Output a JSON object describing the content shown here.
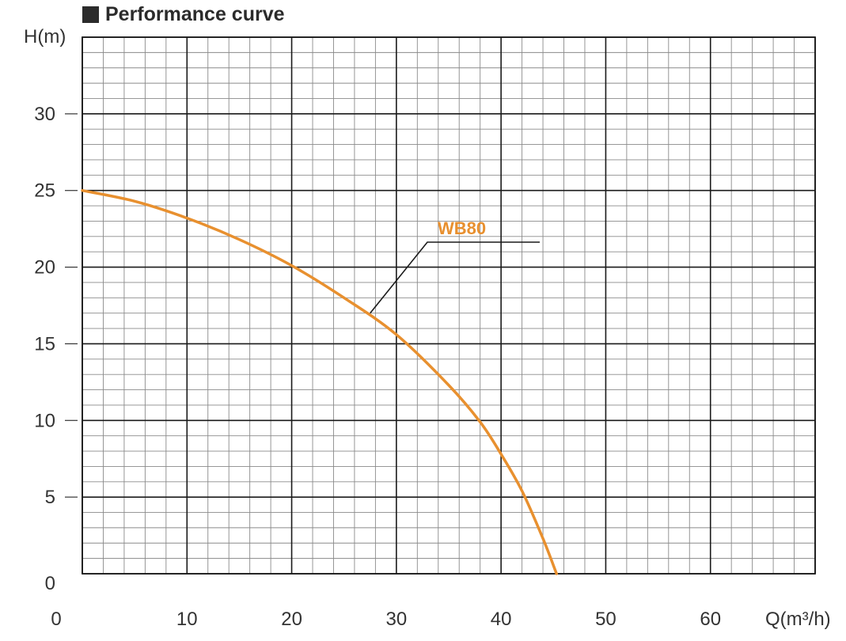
{
  "title": "Performance curve",
  "chart_data": {
    "type": "line",
    "title": "Performance curve",
    "xlabel": "Q(m³/h)",
    "ylabel": "H(m)",
    "xlim": [
      0,
      70
    ],
    "ylim": [
      0,
      35
    ],
    "xticks": [
      "0",
      "10",
      "20",
      "30",
      "40",
      "50",
      "60"
    ],
    "yticks": [
      "0",
      "5",
      "10",
      "15",
      "20",
      "25",
      "30"
    ],
    "grid": true,
    "series": [
      {
        "name": "WB80",
        "color": "#E8902F",
        "x": [
          0,
          5,
          10,
          15,
          20,
          25,
          30,
          35,
          38,
          40,
          42,
          44,
          45.3
        ],
        "y": [
          25,
          24.3,
          23.2,
          21.8,
          20.1,
          18.0,
          15.6,
          12.3,
          9.9,
          7.8,
          5.4,
          2.3,
          0
        ]
      }
    ],
    "annotation": {
      "text": "WB80",
      "points_to": [
        27.5,
        17
      ]
    }
  }
}
